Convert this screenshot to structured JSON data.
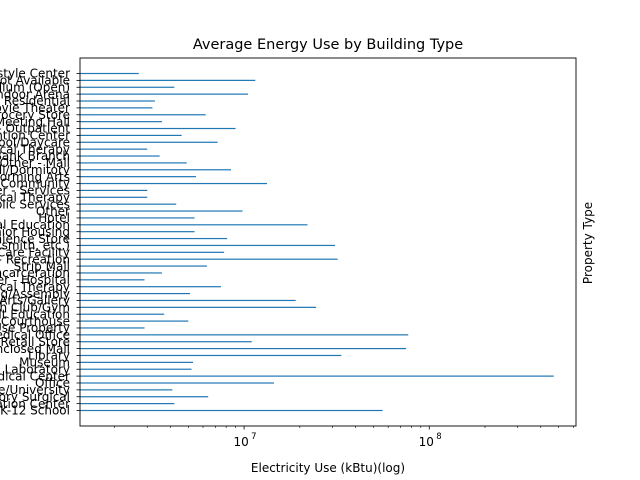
{
  "chart_data": {
    "type": "bar",
    "orientation": "horizontal",
    "title": "Average Energy Use by Building Type",
    "xlabel": "Electricity Use (kBtu)(log)",
    "ylabel": "Property Type",
    "xscale": "log",
    "xlim": [
      1300000,
      620000000
    ],
    "x_tick_labels": [
      {
        "value": 10000000,
        "base": "10",
        "exp": "7"
      },
      {
        "value": 100000000,
        "base": "10",
        "exp": "8"
      }
    ],
    "bar_color": "#1f77b4",
    "categories": [
      "K-12 School",
      "Worship Facility / Other Education Center",
      "Ambulatory Surgical",
      "College/University",
      "Office",
      "Hospital/Medical Center",
      "Laboratory",
      "Museum",
      "Library",
      "Enclosed Mall",
      "Retail Store",
      "Medical Office",
      "Mixed Use Property",
      "Courthouse",
      "Adult Education",
      "Fitness Center/Health Club/Gym",
      "Performing Arts/Gallery",
      "Social/Meeting/Assembly",
      "Urgent Care/Clinic/Other Outpatient / Physical Therapy",
      "Other - Hospital",
      "Prison/Incarceration",
      "Strip Mall",
      "Other - Recreation",
      "Senior Care Facility",
      "Repair Services (Vehicle, Shoe, Locksmith, etc.)",
      "Data Center / Convenience Store",
      "Residential Care Facility / Senior Housing",
      "Vocational Education",
      "Hotel",
      "Other",
      "Other - Public Services",
      "Outpatient Rehabilitation/Physical Therapy",
      "Other - Services",
      "Food Service / Community",
      "Performing Arts",
      "Residence Hall/Dormitory",
      "Other - Mall",
      "Bank Branch",
      "Physical Therapy",
      "Pre-school/Daycare",
      "Convention Center",
      "Other - Outpatient",
      "Meeting Hall",
      "Grocery Store",
      "Movie Theater",
      "Multifamily / Residential",
      "Indoor Arena",
      "Stadium (Open)",
      "Not Available",
      "Lifestyle Center"
    ],
    "values": [
      56000000,
      4200000,
      6400000,
      4100000,
      14500000,
      470000000,
      5200000,
      5300000,
      33500000,
      75000000,
      11000000,
      77000000,
      2900000,
      5000000,
      3700000,
      24500000,
      19000000,
      5100000,
      7500000,
      2900000,
      3600000,
      6300000,
      32000000,
      7800000,
      31000000,
      8100000,
      5400000,
      22000000,
      5400000,
      9800000,
      4300000,
      3000000,
      3000000,
      13300000,
      5500000,
      8500000,
      4900000,
      3500000,
      3000000,
      7200000,
      4600000,
      9000000,
      3600000,
      6200000,
      3200000,
      3300000,
      10500000,
      4200000,
      11500000,
      2700000
    ]
  }
}
